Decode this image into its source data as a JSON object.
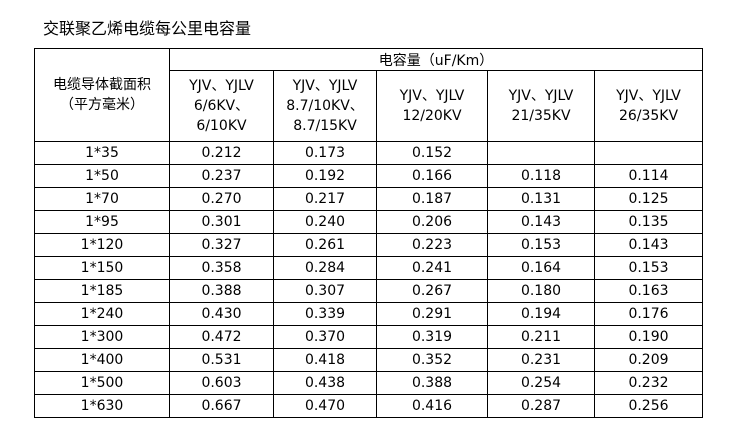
{
  "title": "交联聚乙烯电缆每公里电容量",
  "table": {
    "row_header": "电缆导体截面积\n（平方毫米）",
    "super_header": "电容量（uF/Km）",
    "columns": [
      "YJV、YJLV\n6/6KV、\n6/10KV",
      "YJV、YJLV\n8.7/10KV、\n8.7/15KV",
      "YJV、YJLV\n12/20KV",
      "YJV、YJLV\n21/35KV",
      "YJV、YJLV\n26/35KV"
    ],
    "rows": [
      {
        "size": "1*35",
        "values": [
          "0.212",
          "0.173",
          "0.152",
          "",
          ""
        ]
      },
      {
        "size": "1*50",
        "values": [
          "0.237",
          "0.192",
          "0.166",
          "0.118",
          "0.114"
        ]
      },
      {
        "size": "1*70",
        "values": [
          "0.270",
          "0.217",
          "0.187",
          "0.131",
          "0.125"
        ]
      },
      {
        "size": "1*95",
        "values": [
          "0.301",
          "0.240",
          "0.206",
          "0.143",
          "0.135"
        ]
      },
      {
        "size": "1*120",
        "values": [
          "0.327",
          "0.261",
          "0.223",
          "0.153",
          "0.143"
        ]
      },
      {
        "size": "1*150",
        "values": [
          "0.358",
          "0.284",
          "0.241",
          "0.164",
          "0.153"
        ]
      },
      {
        "size": "1*185",
        "values": [
          "0.388",
          "0.307",
          "0.267",
          "0.180",
          "0.163"
        ]
      },
      {
        "size": "1*240",
        "values": [
          "0.430",
          "0.339",
          "0.291",
          "0.194",
          "0.176"
        ]
      },
      {
        "size": "1*300",
        "values": [
          "0.472",
          "0.370",
          "0.319",
          "0.211",
          "0.190"
        ]
      },
      {
        "size": "1*400",
        "values": [
          "0.531",
          "0.418",
          "0.352",
          "0.231",
          "0.209"
        ]
      },
      {
        "size": "1*500",
        "values": [
          "0.603",
          "0.438",
          "0.388",
          "0.254",
          "0.232"
        ]
      },
      {
        "size": "1*630",
        "values": [
          "0.667",
          "0.470",
          "0.416",
          "0.287",
          "0.256"
        ]
      }
    ]
  }
}
